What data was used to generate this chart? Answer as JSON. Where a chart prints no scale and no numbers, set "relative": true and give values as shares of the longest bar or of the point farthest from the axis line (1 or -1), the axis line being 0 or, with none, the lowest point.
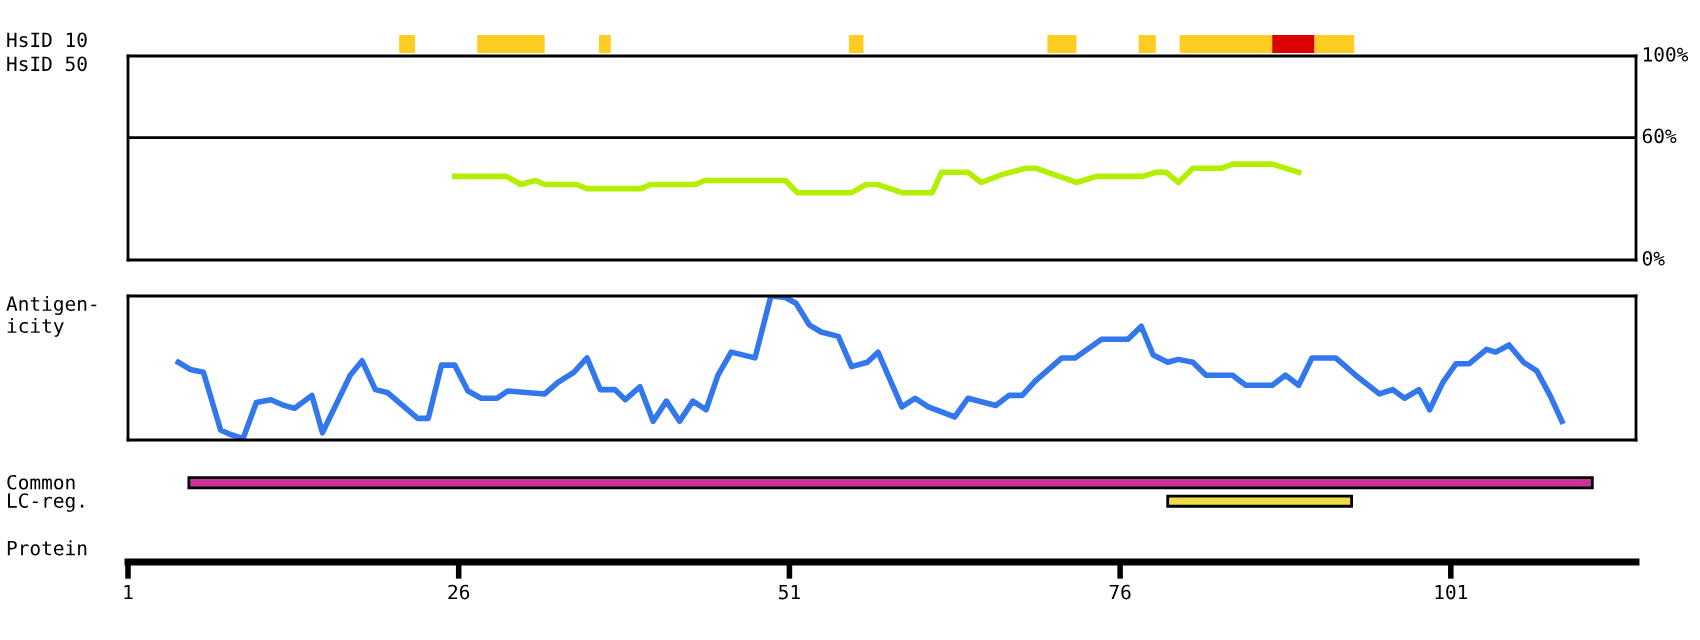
{
  "chart_data": [
    {
      "type": "bar",
      "orientation": "horizontal",
      "categories": [
        "HsID 10"
      ],
      "xlim": [
        1,
        115
      ],
      "tick_labels": false,
      "series": [
        {
          "color": "#ffcc22",
          "base": [
            21.5
          ],
          "values": [
            1.2
          ]
        },
        {
          "color": "#ffcc22",
          "base": [
            27.4
          ],
          "values": [
            5.1
          ]
        },
        {
          "color": "#ffcc22",
          "base": [
            36.6
          ],
          "values": [
            0.9
          ]
        },
        {
          "color": "#ffcc22",
          "base": [
            55.5
          ],
          "values": [
            1.1
          ]
        },
        {
          "color": "#ffcc22",
          "base": [
            70.5
          ],
          "values": [
            2.2
          ]
        },
        {
          "color": "#ffcc22",
          "base": [
            77.4
          ],
          "values": [
            1.3
          ]
        },
        {
          "color": "#ffcc22",
          "base": [
            80.5
          ],
          "values": [
            7.0
          ]
        },
        {
          "color": "#dd0000",
          "base": [
            87.5
          ],
          "values": [
            3.2
          ]
        },
        {
          "color": "#ffcc22",
          "base": [
            90.7
          ],
          "values": [
            3.0
          ]
        }
      ]
    },
    {
      "type": "line",
      "ylabel": "HsID 50",
      "xlim": [
        1,
        115
      ],
      "ylim": [
        0,
        100
      ],
      "yticks": [
        {
          "value": 0,
          "label": "0%"
        },
        {
          "value": 60,
          "label": "60%"
        },
        {
          "value": 100,
          "label": "100%"
        }
      ],
      "tick_labels": "y",
      "grid": false,
      "marker": "none",
      "line_style": "solid",
      "ref_lines": [
        {
          "axis": "y",
          "value": 60,
          "color": "#000000"
        }
      ],
      "series": [
        {
          "color": "#b4ee00",
          "x": [
            25.7,
            29.6,
            30.7,
            31.8,
            32.5,
            34.9,
            35.7,
            39.8,
            40.5,
            43.9,
            44.6,
            50.7,
            51.6,
            55.7,
            56.8,
            57.7,
            59.5,
            61.8,
            62.5,
            64.5,
            65.5,
            67.1,
            68.9,
            69.6,
            72.7,
            74.2,
            77.7,
            78.7,
            79.5,
            80.4,
            81.5,
            83.7,
            84.5,
            87.5,
            89.5
          ],
          "values": [
            41,
            41,
            37,
            39,
            37,
            37,
            35,
            35,
            37,
            37,
            39,
            39,
            33,
            33,
            37,
            37,
            33,
            33,
            43,
            43,
            38,
            42,
            45,
            45,
            38,
            41,
            41,
            43,
            43,
            38,
            45,
            45,
            47,
            47,
            43
          ]
        }
      ]
    },
    {
      "type": "line",
      "ylabel": "Antigen-\nicity",
      "xlim": [
        1,
        115
      ],
      "relative": true,
      "tick_labels": false,
      "grid": false,
      "marker": "none",
      "line_style": "solid",
      "series": [
        {
          "color": "#3377ee",
          "x": [
            4.8,
            5.7,
            6.7,
            8.0,
            8.7,
            9.7,
            10.7,
            11.8,
            12.8,
            13.6,
            14.9,
            15.7,
            17.8,
            18.7,
            19.7,
            20.6,
            22.9,
            23.7,
            24.7,
            25.7,
            26.7,
            27.7,
            28.9,
            29.7,
            32.5,
            33.5,
            34.7,
            35.7,
            36.7,
            37.8,
            38.6,
            39.7,
            40.7,
            41.7,
            42.7,
            43.7,
            44.7,
            45.6,
            46.6,
            48.4,
            49.6,
            50.7,
            51.5,
            52.5,
            53.4,
            54.7,
            55.7,
            56.9,
            57.7,
            59.5,
            60.5,
            61.5,
            63.5,
            64.5,
            66.6,
            67.6,
            68.6,
            69.6,
            71.6,
            72.6,
            74.6,
            76.6,
            77.6,
            78.5,
            79.6,
            80.4,
            81.5,
            82.5,
            84.5,
            85.5,
            87.5,
            88.5,
            89.5,
            90.5,
            92.3,
            93.8,
            95.6,
            96.6,
            97.5,
            98.6,
            99.4,
            100.4,
            101.4,
            102.4,
            103.7,
            104.4,
            105.4,
            106.5,
            107.5,
            108.5,
            109.4
          ],
          "values": [
            0.54,
            0.49,
            0.47,
            0.07,
            0.04,
            0.01,
            0.26,
            0.28,
            0.24,
            0.22,
            0.31,
            0.05,
            0.45,
            0.55,
            0.35,
            0.33,
            0.15,
            0.15,
            0.52,
            0.52,
            0.34,
            0.29,
            0.29,
            0.34,
            0.32,
            0.4,
            0.47,
            0.57,
            0.35,
            0.35,
            0.28,
            0.37,
            0.13,
            0.27,
            0.13,
            0.27,
            0.21,
            0.45,
            0.61,
            0.57,
            1.0,
            0.99,
            0.95,
            0.8,
            0.75,
            0.72,
            0.51,
            0.54,
            0.61,
            0.23,
            0.29,
            0.23,
            0.16,
            0.29,
            0.24,
            0.31,
            0.31,
            0.41,
            0.57,
            0.57,
            0.7,
            0.7,
            0.79,
            0.59,
            0.54,
            0.56,
            0.54,
            0.45,
            0.45,
            0.38,
            0.38,
            0.45,
            0.38,
            0.57,
            0.57,
            0.45,
            0.32,
            0.35,
            0.29,
            0.35,
            0.21,
            0.4,
            0.53,
            0.53,
            0.63,
            0.61,
            0.66,
            0.54,
            0.48,
            0.31,
            0.13
          ]
        }
      ]
    },
    {
      "type": "bar",
      "orientation": "horizontal",
      "categories": [
        "Common",
        "LC-reg."
      ],
      "base": [
        5.6,
        79.6
      ],
      "values": [
        106.1,
        13.9
      ],
      "colors": [
        "#cc3399",
        "#eedd44"
      ],
      "xlim": [
        1,
        115
      ],
      "xticks": [
        1,
        26,
        51,
        76,
        101
      ],
      "tick_labels": "x",
      "grid": false,
      "annotations": [
        "Protein"
      ]
    }
  ]
}
